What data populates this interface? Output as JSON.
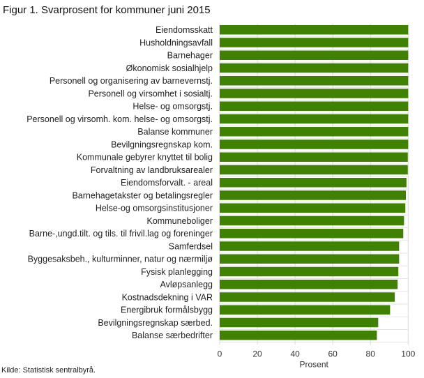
{
  "chart_data": {
    "type": "bar",
    "orientation": "horizontal",
    "title": "Figur 1. Svarprosent for kommuner juni 2015",
    "xlabel": "Prosent",
    "xlim": [
      0,
      100
    ],
    "xticks": [
      0,
      20,
      40,
      60,
      80,
      100
    ],
    "grid": true,
    "color": "#3f8100",
    "source": "Kilde: Statistisk sentralbyrå.",
    "categories": [
      "Eiendomsskatt",
      "Husholdningsavfall",
      "Barnehager",
      "Økonomisk sosialhjelp",
      "Personell og organisering av barnevernstj.",
      "Personell og virsomhet i sosialtj.",
      "Helse- og omsorgstj.",
      "Personell og virsomh. kom. helse- og omsorgstj.",
      "Balanse kommuner",
      "Bevilgningsregnskap kom.",
      "Kommunale gebyrer knyttet til bolig",
      "Forvaltning av landbruksarealer",
      "Eiendomsforvalt. - areal",
      "Barnehagetakster og betalingsregler",
      "Helse-og omsorgsinstitusjoner",
      "Kommuneboliger",
      "Barne-,ungd.tilt. og tils. til frivil.lag og foreninger",
      "Samferdsel",
      "Byggesaksbeh., kulturminner, natur og nærmiljø",
      "Fysisk planlegging",
      "Avløpsanlegg",
      "Kostnadsdekning i VAR",
      "Energibruk formålsbygg",
      "Bevilgningsregnskap særbed.",
      "Balanse særbedrifter"
    ],
    "values": [
      100,
      100,
      100,
      100,
      100,
      100,
      100,
      100,
      100,
      100,
      99.8,
      99.8,
      99.1,
      98.8,
      98.5,
      97.8,
      97.4,
      95.2,
      95.2,
      94.8,
      94.4,
      92.9,
      90.4,
      84.1,
      83.4
    ]
  }
}
